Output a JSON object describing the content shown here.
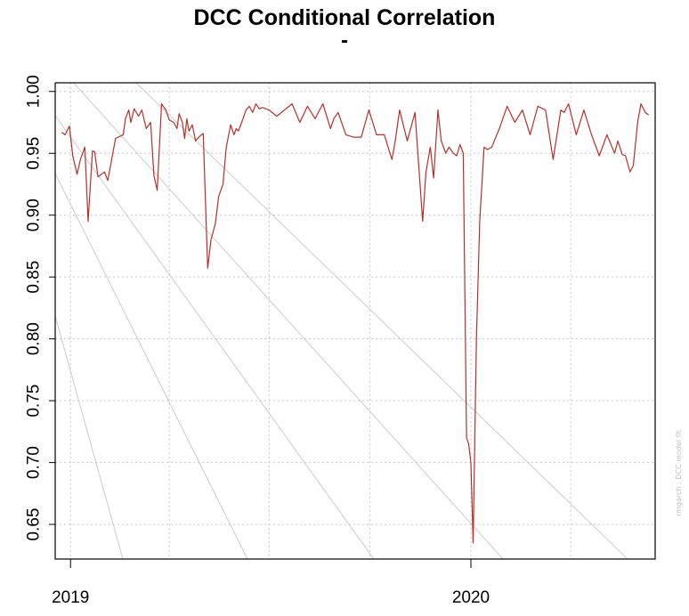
{
  "chart_data": {
    "type": "line",
    "title": "DCC Conditional Correlation",
    "subtitle": "-",
    "xlabel": "",
    "ylabel": "",
    "ylim": [
      0.622,
      1.007
    ],
    "xlim": [
      "2018-12-18",
      "2020-06-17"
    ],
    "y_ticks": [
      "0.65",
      "0.70",
      "0.75",
      "0.80",
      "0.85",
      "0.90",
      "0.95",
      "1.00"
    ],
    "x_ticks": [
      {
        "label": "2019",
        "date": "2019-01-01"
      },
      {
        "label": "2020",
        "date": "2020-01-01"
      }
    ],
    "grid": true,
    "line_color": "#b5302a",
    "series": [
      {
        "x": [
          "2018-12-24",
          "2018-12-27",
          "2018-12-31",
          "2019-01-03",
          "2019-01-07",
          "2019-01-10",
          "2019-01-14",
          "2019-01-17",
          "2019-01-21",
          "2019-01-23",
          "2019-01-26",
          "2019-01-29",
          "2019-02-01",
          "2019-02-04",
          "2019-02-11",
          "2019-02-18",
          "2019-02-20",
          "2019-02-23",
          "2019-02-25",
          "2019-02-28",
          "2019-03-04",
          "2019-03-07",
          "2019-03-11",
          "2019-03-15",
          "2019-03-18",
          "2019-03-21",
          "2019-03-25",
          "2019-03-29",
          "2019-04-01",
          "2019-04-05",
          "2019-04-08",
          "2019-04-10",
          "2019-04-13",
          "2019-04-15",
          "2019-04-17",
          "2019-04-19",
          "2019-04-22",
          "2019-04-25",
          "2019-04-29",
          "2019-05-02",
          "2019-05-06",
          "2019-05-09",
          "2019-05-13",
          "2019-05-16",
          "2019-05-20",
          "2019-05-23",
          "2019-05-27",
          "2019-05-30",
          "2019-06-01",
          "2019-06-03",
          "2019-06-06",
          "2019-06-10",
          "2019-06-13",
          "2019-06-16",
          "2019-06-19",
          "2019-06-22",
          "2019-06-25",
          "2019-07-01",
          "2019-07-08",
          "2019-07-15",
          "2019-07-22",
          "2019-07-29",
          "2019-08-05",
          "2019-08-12",
          "2019-08-19",
          "2019-08-26",
          "2019-08-29",
          "2019-09-02",
          "2019-09-09",
          "2019-09-16",
          "2019-09-23",
          "2019-09-30",
          "2019-10-07",
          "2019-10-14",
          "2019-10-21",
          "2019-10-24",
          "2019-10-28",
          "2019-11-04",
          "2019-11-11",
          "2019-11-18",
          "2019-11-21",
          "2019-11-25",
          "2019-11-28",
          "2019-12-02",
          "2019-12-05",
          "2019-12-09",
          "2019-12-12",
          "2019-12-16",
          "2019-12-19",
          "2019-12-22",
          "2019-12-25",
          "2019-12-28",
          "2019-12-30",
          "2020-01-01",
          "2020-01-03",
          "2020-01-06",
          "2020-01-09",
          "2020-01-13",
          "2020-01-16",
          "2020-01-20",
          "2020-01-27",
          "2020-02-03",
          "2020-02-10",
          "2020-02-17",
          "2020-02-24",
          "2020-03-02",
          "2020-03-09",
          "2020-03-16",
          "2020-03-23",
          "2020-03-26",
          "2020-03-30",
          "2020-04-06",
          "2020-04-13",
          "2020-04-20",
          "2020-04-27",
          "2020-05-04",
          "2020-05-11",
          "2020-05-14",
          "2020-05-18",
          "2020-05-21",
          "2020-05-25",
          "2020-05-28",
          "2020-06-01",
          "2020-06-04",
          "2020-06-08",
          "2020-06-11"
        ],
        "values": [
          0.967,
          0.965,
          0.972,
          0.948,
          0.933,
          0.945,
          0.955,
          0.895,
          0.952,
          0.951,
          0.931,
          0.933,
          0.935,
          0.928,
          0.962,
          0.965,
          0.978,
          0.985,
          0.975,
          0.986,
          0.98,
          0.985,
          0.97,
          0.975,
          0.932,
          0.92,
          0.99,
          0.985,
          0.977,
          0.975,
          0.97,
          0.982,
          0.975,
          0.962,
          0.978,
          0.968,
          0.973,
          0.96,
          0.964,
          0.966,
          0.857,
          0.88,
          0.893,
          0.915,
          0.925,
          0.955,
          0.973,
          0.965,
          0.97,
          0.968,
          0.975,
          0.985,
          0.988,
          0.983,
          0.99,
          0.986,
          0.987,
          0.985,
          0.98,
          0.985,
          0.99,
          0.975,
          0.988,
          0.978,
          0.99,
          0.97,
          0.978,
          0.983,
          0.965,
          0.963,
          0.963,
          0.985,
          0.965,
          0.965,
          0.945,
          0.96,
          0.985,
          0.96,
          0.983,
          0.895,
          0.935,
          0.955,
          0.93,
          0.985,
          0.96,
          0.95,
          0.955,
          0.95,
          0.948,
          0.957,
          0.95,
          0.72,
          0.715,
          0.7,
          0.635,
          0.8,
          0.895,
          0.955,
          0.953,
          0.955,
          0.97,
          0.988,
          0.975,
          0.985,
          0.965,
          0.988,
          0.985,
          0.945,
          0.985,
          0.983,
          0.99,
          0.965,
          0.985,
          0.965,
          0.948,
          0.965,
          0.95,
          0.96,
          0.949,
          0.948,
          0.935,
          0.94,
          0.975,
          0.99,
          0.983,
          0.981
        ]
      }
    ]
  },
  "watermark": "rmgarch : DCC model fit"
}
